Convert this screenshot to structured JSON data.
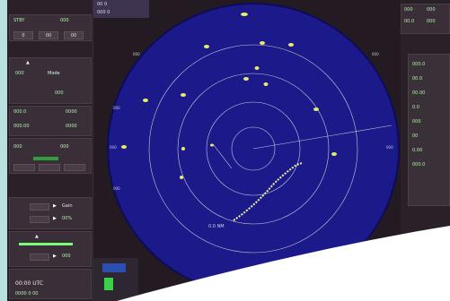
{
  "left_panel": {
    "row1": [
      "STBY",
      "000"
    ],
    "row2": [
      "0",
      "00",
      "00"
    ],
    "mode_label": "Mode",
    "val_a": "000",
    "val_b": "000.0",
    "val_c": "000",
    "val_d": "000.00",
    "val_e": "0000",
    "val_f": "0000",
    "val_g": "000",
    "val_h": "000",
    "tune_label": "Tune",
    "gain_label": "Gain",
    "gain_val": "00%",
    "tune_val": "000",
    "clock": "00:00 UTC",
    "footer": "0000 0 00"
  },
  "top_strip": {
    "line1": "00 0",
    "line2": "000 0"
  },
  "radar": {
    "background": "#1c1a8a",
    "ring_color": "#c9c9d6",
    "target_color": "#e8ec6a",
    "range_label": "0.0 NM"
  },
  "right_panel": {
    "head1": [
      "000",
      "000"
    ],
    "head2": [
      "00.0",
      "000"
    ],
    "lines": [
      "000.0",
      "00.0",
      "00.00",
      "0.0",
      "000",
      "00",
      "0.00",
      "000.0"
    ]
  }
}
